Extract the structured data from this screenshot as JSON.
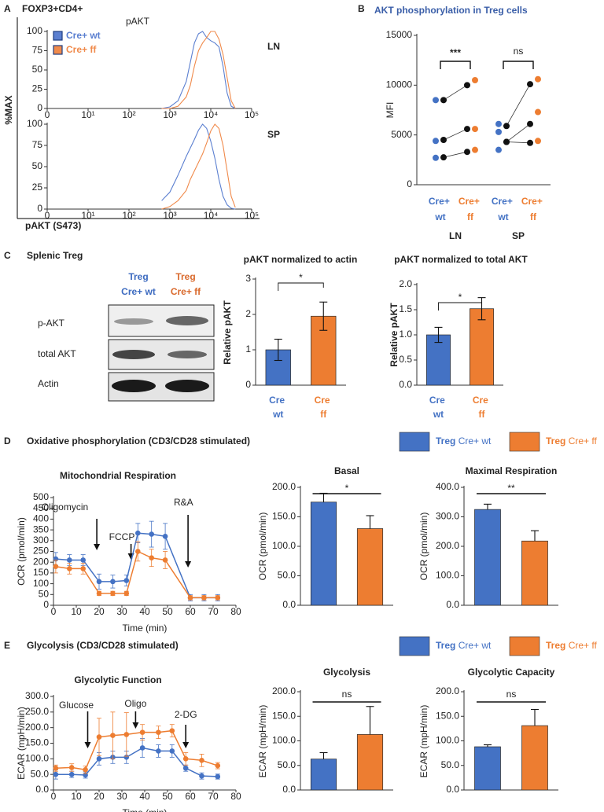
{
  "chart_data": [
    {
      "type": "line",
      "panel": "A",
      "title": "FOXP3+CD4+",
      "subtitle": "pAKT",
      "ylabel": "%MAX",
      "xlabel": "pAKT (S473)",
      "annotation": "LN",
      "x": [
        2.8,
        3.0,
        3.2,
        3.4,
        3.5,
        3.6,
        3.7,
        3.8,
        3.9,
        4.0,
        4.1,
        4.2,
        4.3,
        4.4,
        4.5,
        4.6
      ],
      "xlim": [
        0,
        5
      ],
      "xticks": [
        0,
        {
          "value": 1,
          "label": "10¹"
        },
        {
          "value": 2,
          "label": "10²"
        },
        {
          "value": 3,
          "label": "10³"
        },
        {
          "value": 4,
          "label": "10⁴"
        },
        {
          "value": 5,
          "label": "10⁵"
        }
      ],
      "ylim": [
        0,
        100
      ],
      "yticks": [
        0,
        25,
        50,
        75,
        100
      ],
      "series": [
        {
          "name": "Cre+ wt",
          "color": "#5b7fd0",
          "values": [
            0,
            2,
            10,
            35,
            60,
            85,
            97,
            100,
            92,
            88,
            85,
            80,
            55,
            20,
            3,
            0
          ]
        },
        {
          "name": "Cre+ ff",
          "color": "#f08a4b",
          "values": [
            0,
            0,
            3,
            15,
            30,
            55,
            75,
            85,
            92,
            100,
            100,
            90,
            70,
            40,
            10,
            0
          ]
        }
      ]
    },
    {
      "type": "line",
      "annotation": "SP",
      "x": [
        2.8,
        3.0,
        3.2,
        3.4,
        3.5,
        3.6,
        3.7,
        3.8,
        3.9,
        4.0,
        4.1,
        4.2,
        4.3,
        4.4,
        4.5,
        4.6
      ],
      "xlim": [
        0,
        5
      ],
      "xticks": [
        0,
        {
          "value": 1,
          "label": "10¹"
        },
        {
          "value": 2,
          "label": "10²"
        },
        {
          "value": 3,
          "label": "10³"
        },
        {
          "value": 4,
          "label": "10⁴"
        },
        {
          "value": 5,
          "label": "10⁵"
        }
      ],
      "ylim": [
        0,
        100
      ],
      "yticks": [
        0,
        25,
        50,
        75,
        100
      ],
      "series": [
        {
          "color": "#5b7fd0",
          "values": [
            10,
            20,
            40,
            62,
            72,
            82,
            93,
            100,
            95,
            80,
            60,
            35,
            15,
            5,
            1,
            0
          ]
        },
        {
          "color": "#f08a4b",
          "values": [
            0,
            3,
            10,
            22,
            35,
            45,
            55,
            65,
            78,
            92,
            100,
            95,
            75,
            45,
            15,
            2
          ]
        }
      ]
    },
    {
      "type": "scatter",
      "panel": "B",
      "title": "AKT phosphorylation in Treg cells",
      "ylabel": "MFI",
      "categories": [
        "Cre+ wt",
        "Cre+ ff",
        "Cre+ wt",
        "Cre+ ff"
      ],
      "groups": [
        "LN",
        "SP"
      ],
      "colors": [
        "#4472c4",
        "#ed7d31",
        "#4472c4",
        "#ed7d31"
      ],
      "points": [
        [
          8500,
          4400,
          2700
        ],
        [
          10500,
          5600,
          3500
        ],
        [
          6100,
          5300,
          3500
        ],
        [
          10600,
          7300,
          4400
        ]
      ],
      "paired": [
        [
          8500,
          4500,
          2750
        ],
        [
          10000,
          5600,
          3300
        ],
        [
          5900,
          4300,
          4300
        ],
        [
          10100,
          6100,
          4200
        ]
      ],
      "annotations": [
        "***",
        "ns"
      ],
      "ylim": [
        0,
        15000
      ],
      "yticks": [
        0,
        5000,
        10000,
        15000
      ]
    },
    {
      "type": "bar",
      "title": "pAKT normalized to actin",
      "ylabel": "Relative pAKT",
      "categories": [
        "Cre wt",
        "Cre ff"
      ],
      "values": [
        1,
        1.95
      ],
      "errors": [
        0.3,
        0.4
      ],
      "error_bars": "both",
      "colors": [
        "#4472c4",
        "#ed7d31"
      ],
      "annotation": "*",
      "ylim": [
        0,
        3
      ],
      "yticks": [
        0,
        1,
        2,
        3
      ]
    },
    {
      "type": "bar",
      "title": "pAKT normalized to total AKT",
      "ylabel": "Relative pAKT",
      "categories": [
        "Cre wt",
        "Cre ff"
      ],
      "values": [
        1,
        1.52
      ],
      "errors": [
        0.15,
        0.22
      ],
      "error_bars": "both",
      "colors": [
        "#4472c4",
        "#ed7d31"
      ],
      "annotation": "*",
      "ylim": [
        0,
        2
      ],
      "yticks": [
        {
          "value": 0,
          "label": "0.0"
        },
        {
          "value": 0.5,
          "label": "0.5"
        },
        {
          "value": 1,
          "label": "1.0"
        },
        {
          "value": 1.5,
          "label": "1.5"
        },
        {
          "value": 2,
          "label": "2.0"
        }
      ]
    },
    {
      "type": "line",
      "panel": "D",
      "section_title": "Oxidative phosphorylation (CD3/CD28 stimulated)",
      "legend_label": "Treg",
      "title": "Mitochondrial Respiration",
      "xlabel": "Time (min)",
      "ylabel": "OCR (pmol/min)",
      "markers": true,
      "annotations": [
        "Oligomycin",
        "FCCP",
        "R&A"
      ],
      "x": [
        1,
        7,
        13,
        20,
        26,
        32,
        37,
        43,
        49,
        60,
        66,
        72
      ],
      "xlim": [
        0,
        80
      ],
      "xticks": [
        0,
        10,
        20,
        30,
        40,
        50,
        60,
        70,
        80
      ],
      "ylim": [
        0,
        500
      ],
      "yticks": [
        0,
        50,
        100,
        150,
        200,
        250,
        300,
        350,
        400,
        450,
        500
      ],
      "series": [
        {
          "name": "Cre+ wt",
          "color": "#4472c4",
          "values": [
            215,
            210,
            210,
            110,
            110,
            115,
            335,
            330,
            320,
            35,
            35,
            35
          ],
          "errors": [
            30,
            25,
            25,
            35,
            30,
            25,
            45,
            60,
            60,
            15,
            15,
            15
          ]
        },
        {
          "name": "Cre+ ff",
          "color": "#ed7d31",
          "values": [
            180,
            170,
            170,
            55,
            55,
            55,
            250,
            220,
            210,
            35,
            35,
            35
          ],
          "errors": [
            30,
            25,
            25,
            10,
            10,
            10,
            45,
            40,
            40,
            10,
            10,
            10
          ]
        }
      ]
    },
    {
      "type": "bar",
      "title": "Basal",
      "ylabel": "OCR (pmol/min)",
      "values": [
        175,
        130
      ],
      "errors": [
        15,
        22
      ],
      "error_bars": "up",
      "colors": [
        "#4472c4",
        "#ed7d31"
      ],
      "annotation": "*",
      "ylim": [
        0,
        200
      ],
      "yticks": [
        {
          "value": 0,
          "label": "0.0"
        },
        {
          "value": 50,
          "label": "50.0"
        },
        {
          "value": 100,
          "label": "100.0"
        },
        {
          "value": 150,
          "label": "150.0"
        },
        {
          "value": 200,
          "label": "200.0"
        }
      ]
    },
    {
      "type": "bar",
      "title": "Maximal Respiration",
      "ylabel": "OCR (pmol/min)",
      "values": [
        325,
        218
      ],
      "errors": [
        18,
        35
      ],
      "error_bars": "up",
      "colors": [
        "#4472c4",
        "#ed7d31"
      ],
      "annotation": "**",
      "ylim": [
        0,
        400
      ],
      "yticks": [
        {
          "value": 0,
          "label": "0.0"
        },
        {
          "value": 100,
          "label": "100.0"
        },
        {
          "value": 200,
          "label": "200.0"
        },
        {
          "value": 300,
          "label": "300.0"
        },
        {
          "value": 400,
          "label": "400.0"
        }
      ]
    },
    {
      "type": "line",
      "panel": "E",
      "section_title": "Glycolysis (CD3/CD28 stimulated)",
      "legend_label": "Treg",
      "title": "Glycolytic Function",
      "xlabel": "Time (min)",
      "ylabel": "ECAR (mpH/min)",
      "markers": true,
      "annotations": [
        "Glucose",
        "Oligo",
        "2-DG"
      ],
      "x": [
        1,
        8,
        14,
        20,
        26,
        32,
        39,
        46,
        52,
        58,
        65,
        72
      ],
      "xlim": [
        0,
        80
      ],
      "xticks": [
        0,
        10,
        20,
        30,
        40,
        50,
        60,
        70,
        80
      ],
      "ylim": [
        0,
        300
      ],
      "yticks": [
        {
          "value": 0,
          "label": "0.0"
        },
        {
          "value": 50,
          "label": "50.0"
        },
        {
          "value": 100,
          "label": "100.0"
        },
        {
          "value": 150,
          "label": "150.0"
        },
        {
          "value": 200,
          "label": "200.0"
        },
        {
          "value": 250,
          "label": "250.0"
        },
        {
          "value": 300,
          "label": "300.0"
        }
      ],
      "series": [
        {
          "name": "Cre+ wt",
          "color": "#4472c4",
          "values": [
            50,
            50,
            48,
            100,
            105,
            105,
            135,
            125,
            125,
            70,
            45,
            43
          ],
          "errors": [
            15,
            10,
            10,
            20,
            20,
            20,
            30,
            20,
            20,
            10,
            10,
            8
          ]
        },
        {
          "name": "Cre+ ff",
          "color": "#ed7d31",
          "values": [
            70,
            72,
            65,
            170,
            175,
            178,
            185,
            185,
            190,
            100,
            95,
            78
          ],
          "errors": [
            10,
            12,
            12,
            60,
            75,
            70,
            25,
            20,
            20,
            20,
            20,
            10
          ]
        }
      ]
    },
    {
      "type": "bar",
      "title": "Glycolysis",
      "ylabel": "ECAR (mpH/min)",
      "values": [
        63,
        113
      ],
      "errors": [
        13,
        57
      ],
      "error_bars": "up",
      "colors": [
        "#4472c4",
        "#ed7d31"
      ],
      "annotation": "ns",
      "ylim": [
        0,
        200
      ],
      "yticks": [
        {
          "value": 0,
          "label": "0.0"
        },
        {
          "value": 50,
          "label": "50.0"
        },
        {
          "value": 100,
          "label": "100.0"
        },
        {
          "value": 150,
          "label": "150.0"
        },
        {
          "value": 200,
          "label": "200.0"
        }
      ]
    },
    {
      "type": "bar",
      "title": "Glycolytic Capacity",
      "ylabel": "ECAR (mpH/min)",
      "values": [
        88,
        131
      ],
      "errors": [
        4,
        33
      ],
      "error_bars": "up",
      "colors": [
        "#4472c4",
        "#ed7d31"
      ],
      "annotation": "ns",
      "ylim": [
        0,
        200
      ],
      "yticks": [
        {
          "value": 0,
          "label": "0.0"
        },
        {
          "value": 50,
          "label": "50.0"
        },
        {
          "value": 100,
          "label": "100.0"
        },
        {
          "value": 150,
          "label": "150.0"
        },
        {
          "value": 200,
          "label": "200.0"
        }
      ]
    }
  ],
  "blot": {
    "panel": "C",
    "title": "Splenic Treg",
    "lanes": [
      {
        "line1": "Treg",
        "line2": "Cre+ wt"
      },
      {
        "line1": "Treg",
        "line2": "Cre+ ff"
      }
    ],
    "rows": [
      "p-AKT",
      "total AKT",
      "Actin"
    ]
  }
}
